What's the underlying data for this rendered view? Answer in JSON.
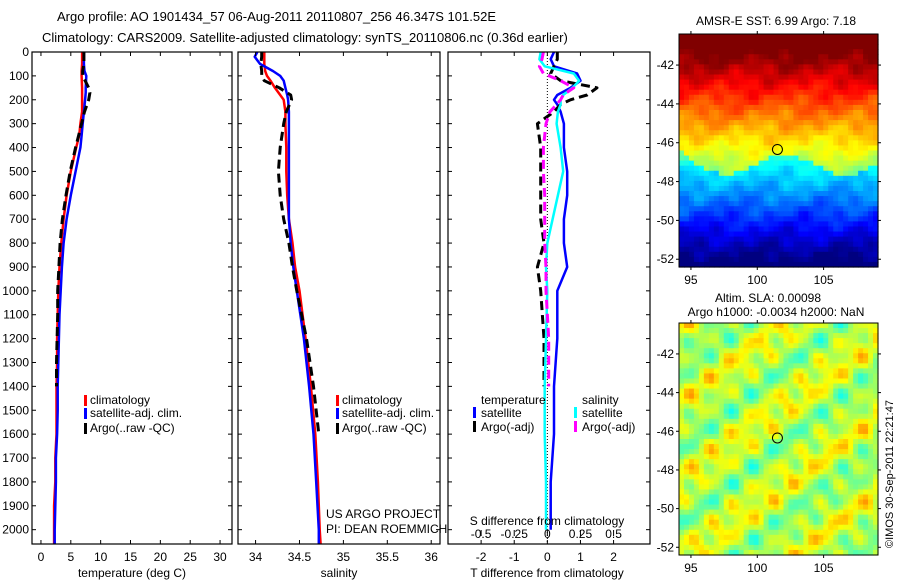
{
  "header": {
    "line1": "Argo profile: AO 1901434_57 06-Aug-2011 20110807_256 46.347S 101.52E",
    "line2": "Climatology: CARS2009. Satellite-adjusted climatology: synTS_20110806.nc (0.36d earlier)"
  },
  "credits": {
    "project": "US ARGO PROJECT",
    "pi": "PI: DEAN ROEMMICH",
    "copyright": "©IMOS 30-Sep-2011 22:21:47"
  },
  "colors": {
    "climatology": "#ff0000",
    "satellite_temp": "#0000ff",
    "argo": "#000000",
    "satellite_sal": "#00ffff",
    "argo_sal": "#ff00ff"
  },
  "chart_data": [
    {
      "id": "temperature",
      "type": "line",
      "title": "",
      "xlabel": "temperature (deg C)",
      "ylabel": "",
      "xlim": [
        -1.5,
        32
      ],
      "ylim": [
        2060,
        0
      ],
      "xticks": [
        0,
        5,
        10,
        15,
        20,
        25,
        30
      ],
      "yticks": [
        0,
        100,
        200,
        300,
        400,
        500,
        600,
        700,
        800,
        900,
        1000,
        1100,
        1200,
        1300,
        1400,
        1500,
        1600,
        1700,
        1800,
        1900,
        2000
      ],
      "legend": {
        "placement": "center-left",
        "entries": [
          "climatology",
          "satellite-adj. clim.",
          "Argo(..raw -QC)"
        ]
      },
      "depth": [
        0,
        50,
        80,
        100,
        150,
        170,
        200,
        250,
        300,
        350,
        400,
        500,
        600,
        700,
        800,
        900,
        1000,
        1100,
        1200,
        1300,
        1400,
        1500,
        1600,
        1700,
        1800,
        1900,
        2000,
        2060
      ],
      "series": [
        {
          "name": "climatology",
          "color_key": "climatology",
          "dash": false,
          "values": [
            6.9,
            6.9,
            6.8,
            6.8,
            6.9,
            6.9,
            6.9,
            6.9,
            6.6,
            6.4,
            5.9,
            5.0,
            4.3,
            3.8,
            3.4,
            3.1,
            2.9,
            2.8,
            2.7,
            2.7,
            2.6,
            2.6,
            2.6,
            2.4,
            2.4,
            2.2,
            2.2,
            2.2
          ]
        },
        {
          "name": "satellite-adj. clim.",
          "color_key": "satellite_temp",
          "dash": false,
          "values": [
            7.2,
            7.2,
            7.3,
            7.6,
            7.5,
            7.5,
            7.4,
            7.2,
            7.0,
            6.8,
            6.6,
            5.8,
            5.0,
            4.3,
            3.8,
            3.5,
            3.3,
            3.1,
            3.0,
            2.9,
            2.8,
            2.8,
            2.7,
            2.5,
            2.5,
            2.4,
            2.3,
            2.3
          ]
        },
        {
          "name": "Argo(..raw -QC)",
          "color_key": "argo",
          "dash": true,
          "values": [
            7.2,
            7.2,
            7.0,
            7.0,
            8.0,
            8.2,
            8.0,
            7.3,
            6.8,
            6.3,
            5.8,
            4.9,
            4.2,
            3.6,
            3.2,
            3.0,
            2.8,
            2.8,
            2.7,
            2.6,
            2.6
          ]
        }
      ]
    },
    {
      "id": "salinity",
      "type": "line",
      "title": "",
      "xlabel": "salinity",
      "ylabel": "",
      "xlim": [
        33.8,
        36.1
      ],
      "ylim": [
        2060,
        0
      ],
      "xticks": [
        34,
        34.5,
        35,
        35.5,
        36
      ],
      "legend": {
        "placement": "center-right",
        "entries": [
          "climatology",
          "satellite-adj. clim.",
          "Argo(..raw -QC)"
        ]
      },
      "depth": [
        0,
        20,
        50,
        80,
        100,
        120,
        150,
        180,
        200,
        250,
        300,
        400,
        500,
        600,
        700,
        800,
        900,
        1000,
        1200,
        1400,
        1600,
        1800,
        2000,
        2060
      ],
      "series": [
        {
          "name": "climatology",
          "color_key": "climatology",
          "dash": false,
          "values": [
            34.1,
            34.1,
            34.1,
            34.11,
            34.13,
            34.17,
            34.22,
            34.28,
            34.32,
            34.34,
            34.34,
            34.35,
            34.35,
            34.36,
            34.38,
            34.42,
            34.45,
            34.5,
            34.57,
            34.63,
            34.68,
            34.71,
            34.73,
            34.74
          ]
        },
        {
          "name": "satellite-adj. clim.",
          "color_key": "satellite_temp",
          "dash": false,
          "values": [
            34.02,
            33.99,
            34.05,
            34.2,
            34.28,
            34.32,
            34.34,
            34.36,
            34.37,
            34.38,
            34.38,
            34.38,
            34.38,
            34.38,
            34.38,
            34.4,
            34.43,
            34.47,
            34.55,
            34.61,
            34.66,
            34.69,
            34.72,
            34.72
          ]
        },
        {
          "name": "Argo(..raw -QC)",
          "color_key": "argo",
          "dash": true,
          "values": [
            34.07,
            34.07,
            34.06,
            34.07,
            34.07,
            34.1,
            34.27,
            34.4,
            34.41,
            34.35,
            34.32,
            34.28,
            34.26,
            34.28,
            34.32,
            34.38,
            34.42,
            34.47,
            34.58,
            34.66,
            34.72
          ]
        }
      ]
    },
    {
      "id": "difference",
      "type": "line",
      "title": "",
      "xlabel": "T difference from climatology",
      "xlabel2": "S difference from climatology",
      "xlim": [
        -3,
        3.1
      ],
      "xlim2": [
        -0.75,
        0.775
      ],
      "ylim": [
        2060,
        0
      ],
      "xticks": [
        -2,
        -1,
        0,
        1,
        2
      ],
      "xticks2": [
        -0.5,
        -0.25,
        0,
        0.25,
        0.5
      ],
      "xticklabels2": [
        "-0.5",
        "-0.25",
        "0",
        "0.25",
        "0.5"
      ],
      "zero_line": true,
      "legend": {
        "placement": "bottom-center",
        "groups": [
          {
            "title": "temperature",
            "entries": [
              "satellite",
              "Argo(-adj)"
            ]
          },
          {
            "title": "salinity",
            "entries": [
              "satellite",
              "Argo(-adj)"
            ]
          }
        ]
      },
      "depth": [
        0,
        30,
        60,
        90,
        120,
        150,
        180,
        200,
        220,
        250,
        300,
        400,
        500,
        600,
        700,
        800,
        900,
        1000,
        1200,
        1400,
        1600,
        1800,
        2000
      ],
      "series": [
        {
          "name": "temperature satellite",
          "color_key": "satellite_temp",
          "dash": false,
          "axis": "T",
          "values": [
            0.2,
            0.1,
            0.2,
            0.9,
            1.0,
            0.7,
            0.3,
            0.2,
            0.3,
            0.4,
            0.5,
            0.5,
            0.6,
            0.6,
            0.5,
            0.5,
            0.6,
            0.3,
            0.3,
            0.2,
            0.2,
            0.1,
            0.1
          ]
        },
        {
          "name": "temperature Argo(-adj)",
          "color_key": "argo",
          "dash": true,
          "axis": "T",
          "values": [
            0.3,
            0.3,
            0.2,
            0.1,
            0.4,
            1.5,
            1.2,
            0.7,
            0.4,
            0.2,
            -0.3,
            -0.2,
            -0.2,
            -0.2,
            -0.2,
            -0.1,
            -0.3,
            -0.2,
            -0.1,
            -0.1
          ]
        },
        {
          "name": "salinity satellite",
          "color_key": "satellite_sal",
          "dash": false,
          "axis": "S",
          "values": [
            -0.05,
            -0.06,
            -0.02,
            0.2,
            0.24,
            0.19,
            0.12,
            0.1,
            0.1,
            0.08,
            0.07,
            0.1,
            0.12,
            0.08,
            0.04,
            0.0,
            -0.01,
            0.0,
            -0.01,
            -0.02,
            -0.02,
            -0.01,
            -0.01
          ]
        },
        {
          "name": "salinity Argo(-adj)",
          "color_key": "argo_sal",
          "dash": true,
          "axis": "S",
          "values": [
            -0.03,
            -0.04,
            -0.06,
            -0.03,
            0.1,
            0.2,
            0.12,
            0.1,
            0.07,
            0.02,
            -0.01,
            -0.03,
            -0.03,
            -0.02,
            -0.02,
            -0.02,
            -0.01,
            -0.01,
            0.01,
            0.01
          ]
        }
      ]
    },
    {
      "id": "sst-map",
      "type": "heatmap",
      "title": "AMSR-E SST: 6.99 Argo: 7.18",
      "xlim": [
        94.1,
        109.1
      ],
      "ylim": [
        -52.4,
        -40.4
      ],
      "xticks": [
        95,
        100,
        105
      ],
      "yticks": [
        -42,
        -44,
        -46,
        -48,
        -50,
        -52
      ],
      "marker": {
        "lon": 101.52,
        "lat": -46.347
      },
      "colormap": "jet"
    },
    {
      "id": "sla-map",
      "type": "heatmap",
      "title": "Altim. SLA: 0.00098",
      "subtitle": "Argo h1000: -0.0034 h2000: NaN",
      "xlim": [
        94.1,
        109.1
      ],
      "ylim": [
        -52.4,
        -40.4
      ],
      "xticks": [
        95,
        100,
        105
      ],
      "yticks": [
        -42,
        -44,
        -46,
        -48,
        -50,
        -52
      ],
      "marker": {
        "lon": 101.52,
        "lat": -46.347
      },
      "colormap": "jet"
    }
  ]
}
